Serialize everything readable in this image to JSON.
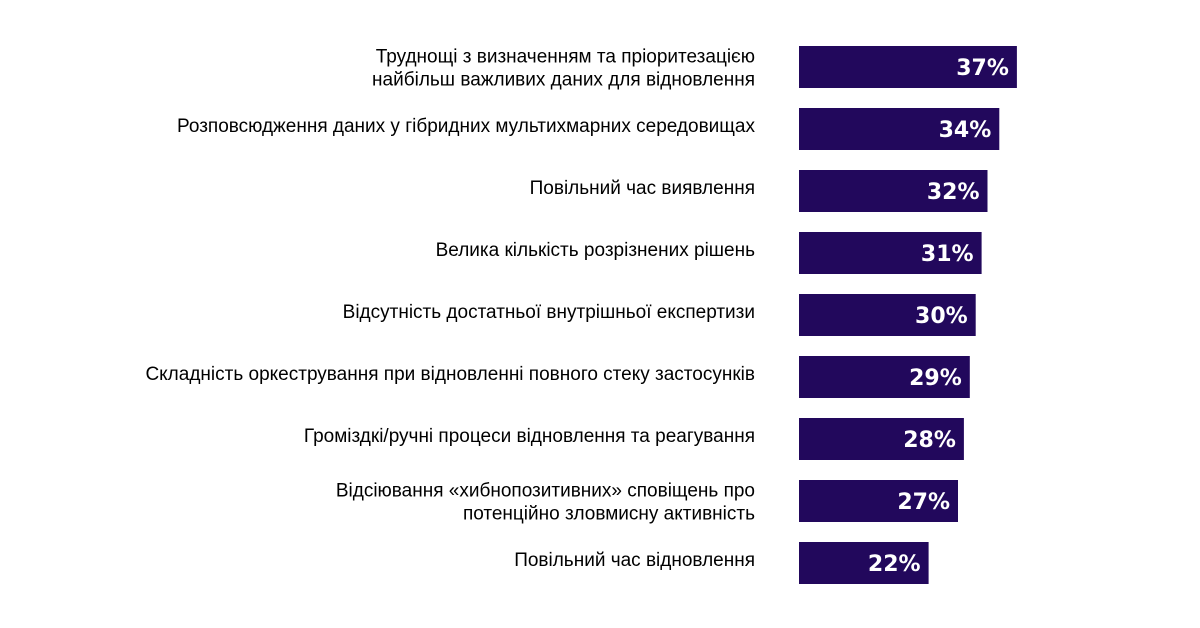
{
  "chart_data": {
    "type": "bar",
    "orientation": "horizontal",
    "title": "",
    "xlabel": "",
    "ylabel": "",
    "xlim": [
      0,
      40
    ],
    "grid": false,
    "legend": "none",
    "bar_color": "#22085C",
    "value_suffix": "%",
    "categories": [
      [
        "Труднощі з визначенням та пріоритезацією",
        "найбільш важливих даних для відновлення"
      ],
      [
        "Розповсюдження даних у гібридних мультихмарних середовищах"
      ],
      [
        "Повільний час виявлення"
      ],
      [
        "Велика кількість розрізнених рішень"
      ],
      [
        "Відсутність достатньої внутрішньої експертизи"
      ],
      [
        "Складність оркестрування при відновленні повного стеку застосунків"
      ],
      [
        "Громіздкі/ручні процеси відновлення та реагування"
      ],
      [
        "Відсіювання «хибнопозитивних» сповіщень про",
        "потенційно зловмисну активність"
      ],
      [
        "Повільний час відновлення"
      ]
    ],
    "values": [
      37,
      34,
      32,
      31,
      30,
      29,
      28,
      27,
      22
    ],
    "value_labels": [
      "37%",
      "34%",
      "32%",
      "31%",
      "30%",
      "29%",
      "28%",
      "27%",
      "22%"
    ]
  }
}
